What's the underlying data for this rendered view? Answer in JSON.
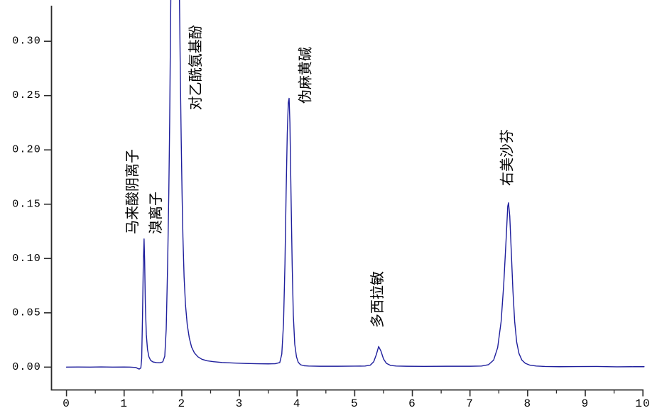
{
  "chart_data": {
    "type": "line",
    "title": "",
    "xlabel": "",
    "ylabel": "",
    "grid": false,
    "legend": null,
    "background_color": "#ffffff",
    "line_color": "#1e1e9c",
    "axis_color": "#2b2b2b",
    "text_color": "#000000",
    "x_axis": {
      "tick_values": [
        0,
        1,
        2,
        3,
        4,
        5,
        6,
        7,
        8,
        9,
        10
      ],
      "tick_labels": [
        "0",
        "1",
        "2",
        "3",
        "4",
        "5",
        "6",
        "7",
        "8",
        "9",
        "10"
      ],
      "minor_tick_step": 0.5,
      "range_shown": [
        -0.26,
        10.01
      ]
    },
    "y_axis": {
      "tick_values": [
        0.0,
        0.05,
        0.1,
        0.15,
        0.2,
        0.25,
        0.3
      ],
      "tick_labels": [
        "0.00",
        "0.05",
        "0.10",
        "0.15",
        "0.20",
        "0.25",
        "0.30"
      ],
      "range_shown": [
        -0.021,
        0.338
      ]
    },
    "annotations": [
      {
        "text": "马来酸阴离子",
        "t": 1.14,
        "v": 0.1224,
        "rotation": -90
      },
      {
        "text": "溴离子",
        "t": 1.545,
        "v": 0.1224,
        "rotation": -90
      },
      {
        "text": "对乙酰氨基酚",
        "t": 2.235,
        "v": 0.2366,
        "rotation": -90
      },
      {
        "text": "伪麻黄碱",
        "t": 4.14,
        "v": 0.2425,
        "rotation": -90
      },
      {
        "text": "多西拉敏",
        "t": 5.39,
        "v": 0.0362,
        "rotation": -90
      },
      {
        "text": "右美沙芬",
        "t": 7.64,
        "v": 0.1668,
        "rotation": -90
      }
    ],
    "apexes": [
      {
        "annotation": "马来酸阴离子 / 溴离子",
        "t": 1.35,
        "value": 0.118,
        "clipped": false
      },
      {
        "annotation": "对乙酰氨基酚",
        "t": 1.89,
        "value": null,
        "clipped": true
      },
      {
        "annotation": "伪麻黄碱",
        "t": 3.86,
        "value": 0.248,
        "clipped": false
      },
      {
        "annotation": "多西拉敏",
        "t": 5.42,
        "value": 0.019,
        "clipped": false
      },
      {
        "annotation": "右美沙芬",
        "t": 7.67,
        "value": 0.151,
        "clipped": false
      }
    ],
    "trace": [
      [
        0.0,
        0.0
      ],
      [
        0.2,
        0.0001
      ],
      [
        0.4,
        0.0
      ],
      [
        0.6,
        0.0002
      ],
      [
        0.8,
        0.0
      ],
      [
        1.0,
        0.0001
      ],
      [
        1.1,
        0.0
      ],
      [
        1.2,
        -0.0003
      ],
      [
        1.26,
        -0.0018
      ],
      [
        1.29,
        -0.0008
      ],
      [
        1.305,
        0.008
      ],
      [
        1.32,
        0.05
      ],
      [
        1.333,
        0.096
      ],
      [
        1.346,
        0.118
      ],
      [
        1.356,
        0.098
      ],
      [
        1.368,
        0.058
      ],
      [
        1.385,
        0.03
      ],
      [
        1.405,
        0.0165
      ],
      [
        1.43,
        0.0095
      ],
      [
        1.46,
        0.0062
      ],
      [
        1.5,
        0.0048
      ],
      [
        1.56,
        0.0042
      ],
      [
        1.62,
        0.004
      ],
      [
        1.67,
        0.0048
      ],
      [
        1.705,
        0.01
      ],
      [
        1.73,
        0.035
      ],
      [
        1.755,
        0.095
      ],
      [
        1.775,
        0.16
      ],
      [
        1.79,
        0.225
      ],
      [
        1.8,
        0.285
      ],
      [
        1.81,
        0.34
      ],
      [
        1.818,
        0.38
      ],
      [
        1.952,
        0.38
      ],
      [
        1.962,
        0.33
      ],
      [
        1.975,
        0.27
      ],
      [
        1.99,
        0.21
      ],
      [
        2.005,
        0.16
      ],
      [
        2.02,
        0.12
      ],
      [
        2.04,
        0.083
      ],
      [
        2.065,
        0.057
      ],
      [
        2.095,
        0.039
      ],
      [
        2.13,
        0.027
      ],
      [
        2.17,
        0.0185
      ],
      [
        2.22,
        0.013
      ],
      [
        2.28,
        0.0095
      ],
      [
        2.35,
        0.0072
      ],
      [
        2.44,
        0.0058
      ],
      [
        2.55,
        0.005
      ],
      [
        2.7,
        0.0043
      ],
      [
        2.9,
        0.0038
      ],
      [
        3.1,
        0.0034
      ],
      [
        3.3,
        0.0031
      ],
      [
        3.5,
        0.003
      ],
      [
        3.62,
        0.0031
      ],
      [
        3.7,
        0.0042
      ],
      [
        3.735,
        0.012
      ],
      [
        3.765,
        0.04
      ],
      [
        3.79,
        0.095
      ],
      [
        3.81,
        0.16
      ],
      [
        3.83,
        0.215
      ],
      [
        3.848,
        0.2435
      ],
      [
        3.862,
        0.2475
      ],
      [
        3.876,
        0.225
      ],
      [
        3.895,
        0.16
      ],
      [
        3.915,
        0.095
      ],
      [
        3.935,
        0.048
      ],
      [
        3.96,
        0.021
      ],
      [
        3.99,
        0.0095
      ],
      [
        4.02,
        0.0045
      ],
      [
        4.06,
        0.0022
      ],
      [
        4.12,
        0.0013
      ],
      [
        4.2,
        0.001
      ],
      [
        4.4,
        0.0008
      ],
      [
        4.7,
        0.0008
      ],
      [
        5.0,
        0.0009
      ],
      [
        5.18,
        0.001
      ],
      [
        5.27,
        0.0018
      ],
      [
        5.33,
        0.005
      ],
      [
        5.375,
        0.0115
      ],
      [
        5.415,
        0.019
      ],
      [
        5.455,
        0.0148
      ],
      [
        5.5,
        0.0075
      ],
      [
        5.55,
        0.0035
      ],
      [
        5.62,
        0.0016
      ],
      [
        5.72,
        0.001
      ],
      [
        5.9,
        0.0008
      ],
      [
        6.2,
        0.0007
      ],
      [
        6.6,
        0.0008
      ],
      [
        7.0,
        0.0008
      ],
      [
        7.2,
        0.001
      ],
      [
        7.32,
        0.0022
      ],
      [
        7.41,
        0.0065
      ],
      [
        7.48,
        0.018
      ],
      [
        7.54,
        0.042
      ],
      [
        7.585,
        0.076
      ],
      [
        7.625,
        0.116
      ],
      [
        7.655,
        0.148
      ],
      [
        7.668,
        0.1513
      ],
      [
        7.69,
        0.139
      ],
      [
        7.715,
        0.108
      ],
      [
        7.745,
        0.07
      ],
      [
        7.775,
        0.042
      ],
      [
        7.81,
        0.023
      ],
      [
        7.85,
        0.0125
      ],
      [
        7.9,
        0.0065
      ],
      [
        7.96,
        0.0035
      ],
      [
        8.04,
        0.0018
      ],
      [
        8.15,
        0.001
      ],
      [
        8.3,
        0.0006
      ],
      [
        8.55,
        0.0004
      ],
      [
        8.85,
        0.0005
      ],
      [
        9.2,
        0.0006
      ],
      [
        9.55,
        0.0003
      ],
      [
        9.85,
        0.0004
      ],
      [
        10.02,
        0.0004
      ]
    ]
  }
}
